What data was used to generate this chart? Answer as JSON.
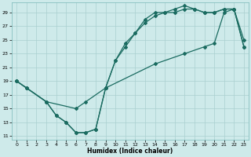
{
  "xlabel": "Humidex (Indice chaleur)",
  "bg_color": "#ceeaea",
  "grid_color": "#aacfcf",
  "line_color": "#1a6b60",
  "xlim": [
    -0.5,
    23.5
  ],
  "ylim": [
    10.5,
    30.5
  ],
  "yticks": [
    11,
    13,
    15,
    17,
    19,
    21,
    23,
    25,
    27,
    29
  ],
  "xticks": [
    0,
    1,
    2,
    3,
    4,
    5,
    6,
    7,
    8,
    9,
    10,
    11,
    12,
    13,
    14,
    15,
    16,
    17,
    18,
    19,
    20,
    21,
    22,
    23
  ],
  "line1_x": [
    0,
    1,
    3,
    4,
    5,
    6,
    7,
    8,
    9,
    10,
    11,
    12,
    13,
    14,
    15,
    16,
    17,
    18,
    19,
    20,
    21,
    22,
    23
  ],
  "line1_y": [
    19,
    18,
    16,
    14,
    13,
    11.5,
    11.5,
    12,
    18,
    22,
    24.5,
    26,
    28,
    29,
    29,
    29.5,
    30,
    29.5,
    29,
    29,
    29.5,
    29.5,
    25
  ],
  "line2_x": [
    0,
    1,
    3,
    4,
    5,
    6,
    7,
    8,
    9,
    10,
    11,
    12,
    13,
    14,
    15,
    16,
    17,
    18,
    19,
    20,
    21,
    22,
    23
  ],
  "line2_y": [
    19,
    18,
    16,
    14,
    13,
    11.5,
    11.5,
    12,
    18,
    22,
    24,
    26,
    27.5,
    28.5,
    29,
    29,
    29.5,
    29.5,
    29,
    29,
    29.5,
    29.5,
    24
  ],
  "line3_x": [
    0,
    1,
    3,
    6,
    7,
    9,
    14,
    17,
    19,
    20,
    21,
    22,
    23
  ],
  "line3_y": [
    19,
    18,
    16,
    15,
    16,
    18,
    21.5,
    23,
    24,
    24.5,
    29,
    29.5,
    24
  ]
}
